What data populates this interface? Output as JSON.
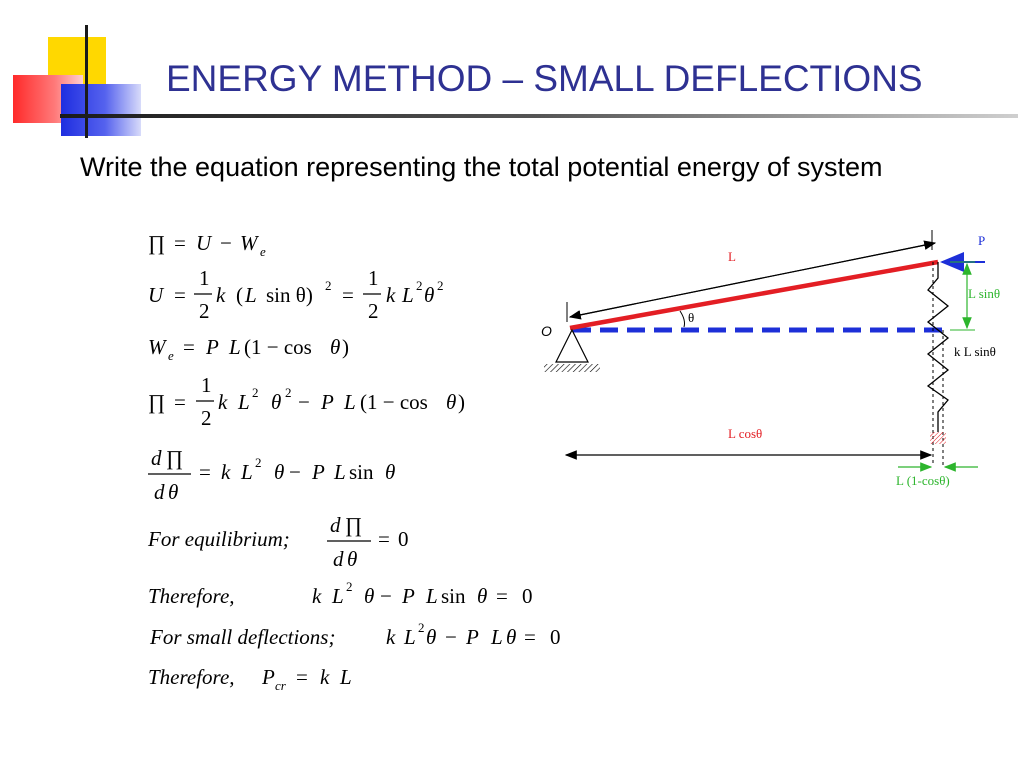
{
  "slide": {
    "title": "ENERGY METHOD – SMALL DEFLECTIONS",
    "subtitle": "Write the equation representing the total potential energy of system",
    "accent_colors": {
      "title": "#2e3192",
      "yellow": "#ffd700",
      "red": "#ff3b3b",
      "blue": "#2233dd"
    }
  },
  "equations": {
    "pi": "∏",
    "eq": "=",
    "minus": "−",
    "U": "U",
    "W": "W",
    "e": "e",
    "one": "1",
    "two": "2",
    "k": "k",
    "L": "L",
    "P": "P",
    "theta": "θ",
    "d": "d",
    "zero": "0",
    "sin": "sin",
    "cos_term": "(1 − cos",
    "lpar": "(",
    "rpar": ")",
    "sin_theta_sq": "sin θ)",
    "for_equilibrium": "For equilibrium;",
    "therefore_comma": "Therefore,",
    "for_small": "For small deflections;",
    "therefore_pcr": "Therefore,",
    "cr": "cr"
  },
  "diagram": {
    "label_L": "L",
    "label_P": "P",
    "label_O": "O",
    "label_theta": "θ",
    "label_Lsin": "L sinθ",
    "label_kLsin": "k L sinθ",
    "label_Lcos": "L cosθ",
    "label_L1cos": "L (1-cosθ)",
    "colors": {
      "bar": "#e31e24",
      "dashed": "#1d2fd8",
      "green": "#2db52d",
      "load": "#1d2fd8",
      "red_text": "#e31e24"
    }
  }
}
